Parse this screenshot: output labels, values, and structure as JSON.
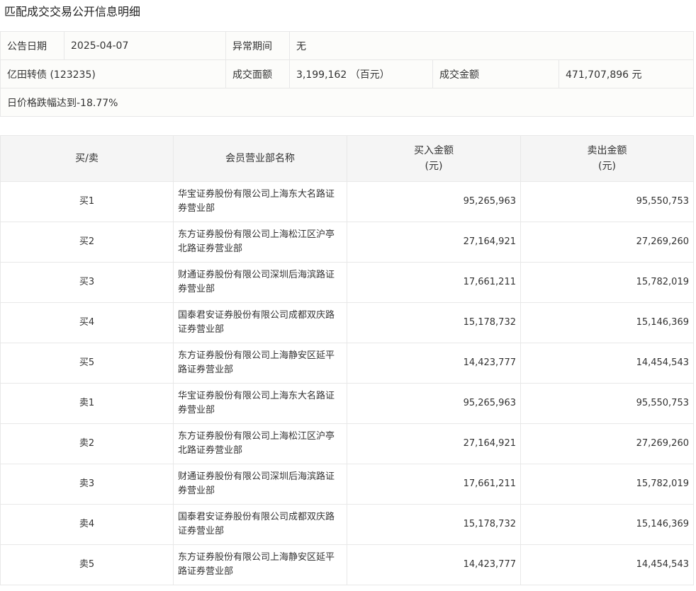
{
  "title": "匹配成交交易公开信息明细",
  "info": {
    "date_label": "公告日期",
    "date": "2025-04-07",
    "abnormal_label": "异常期间",
    "abnormal": "无",
    "bond": "亿田转债 (123235)",
    "face_label": "成交面额",
    "face": "3,199,162 （百元）",
    "amount_label": "成交金额",
    "amount": "471,707,896 元",
    "note": "日价格跌幅达到-18.77%"
  },
  "table": {
    "headers": [
      "买/卖",
      "会员营业部名称",
      "买入金额\n(元)",
      "卖出金额\n(元)"
    ],
    "rows": [
      [
        "买1",
        "华宝证券股份有限公司上海东大名路证券营业部",
        "95,265,963",
        "95,550,753"
      ],
      [
        "买2",
        "东方证券股份有限公司上海松江区沪亭北路证券营业部",
        "27,164,921",
        "27,269,260"
      ],
      [
        "买3",
        "财通证券股份有限公司深圳后海滨路证券营业部",
        "17,661,211",
        "15,782,019"
      ],
      [
        "买4",
        "国泰君安证券股份有限公司成都双庆路证券营业部",
        "15,178,732",
        "15,146,369"
      ],
      [
        "买5",
        "东方证券股份有限公司上海静安区延平路证券营业部",
        "14,423,777",
        "14,454,543"
      ],
      [
        "卖1",
        "华宝证券股份有限公司上海东大名路证券营业部",
        "95,265,963",
        "95,550,753"
      ],
      [
        "卖2",
        "东方证券股份有限公司上海松江区沪亭北路证券营业部",
        "27,164,921",
        "27,269,260"
      ],
      [
        "卖3",
        "财通证券股份有限公司深圳后海滨路证券营业部",
        "17,661,211",
        "15,782,019"
      ],
      [
        "卖4",
        "国泰君安证券股份有限公司成都双庆路证券营业部",
        "15,178,732",
        "15,146,369"
      ],
      [
        "卖5",
        "东方证券股份有限公司上海静安区延平路证券营业部",
        "14,423,777",
        "14,454,543"
      ]
    ]
  }
}
